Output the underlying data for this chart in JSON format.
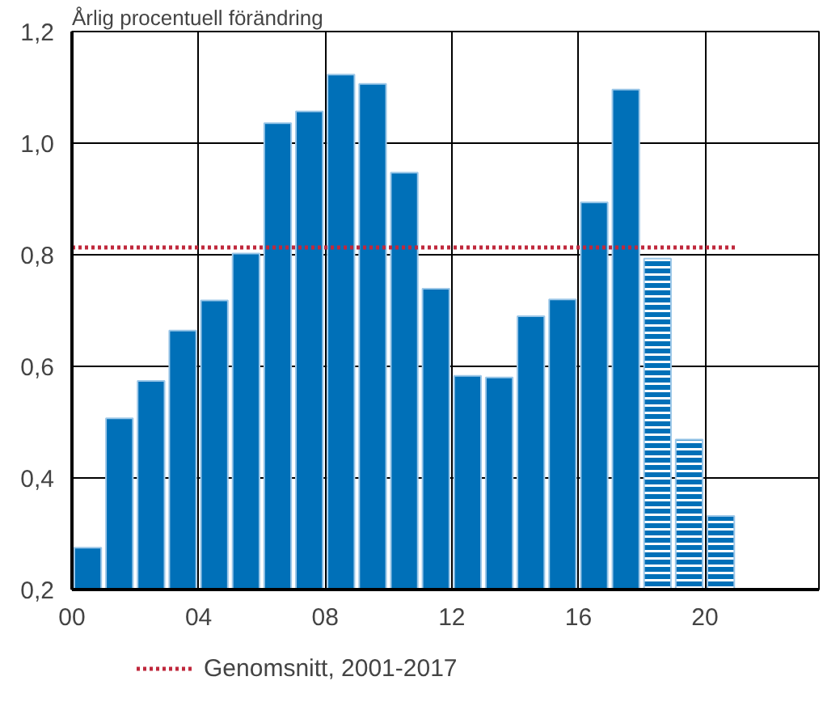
{
  "chart_data": {
    "type": "bar",
    "title": "Årlig procentuell förändring",
    "x": [
      0.5,
      1.5,
      2.5,
      3.5,
      4.5,
      5.5,
      6.5,
      7.5,
      8.5,
      9.5,
      10.5,
      11.5,
      12.5,
      13.5,
      14.5,
      15.5,
      16.5,
      17.5,
      18.5,
      19.5,
      20.5
    ],
    "series": [
      {
        "color": "#0070b8",
        "values": [
          0.275,
          0.507,
          0.574,
          0.664,
          0.718,
          0.802,
          1.036,
          1.057,
          1.123,
          1.106,
          0.947,
          0.739,
          0.583,
          0.58,
          0.69,
          0.72,
          0.894,
          1.096,
          null,
          null,
          null
        ]
      },
      {
        "color": "#0070b8",
        "values": [
          null,
          null,
          null,
          null,
          null,
          null,
          null,
          null,
          null,
          null,
          null,
          null,
          null,
          null,
          null,
          null,
          null,
          null,
          0.793,
          0.469,
          0.332
        ]
      }
    ],
    "xlim": [
      0,
      23.6
    ],
    "xticks": [
      {
        "value": 0,
        "label": "00"
      },
      {
        "value": 4,
        "label": "04"
      },
      {
        "value": 8,
        "label": "08"
      },
      {
        "value": 12,
        "label": "12"
      },
      {
        "value": 16,
        "label": "16"
      },
      {
        "value": 20,
        "label": "20"
      }
    ],
    "ylim": [
      0.2,
      1.2
    ],
    "yticks": [
      {
        "value": 0.2,
        "label": "0,2"
      },
      {
        "value": 0.4,
        "label": "0,4"
      },
      {
        "value": 0.6,
        "label": "0,6"
      },
      {
        "value": 0.8,
        "label": "0,8"
      },
      {
        "value": 1.0,
        "label": "1,0"
      },
      {
        "value": 1.2,
        "label": "1,2"
      }
    ],
    "ref_lines": [
      {
        "axis": "y",
        "value": 0.813,
        "label": "Genomsnitt, 2001-2017",
        "color": "#c0283c",
        "line_style": "dotted"
      }
    ],
    "grid": true,
    "legend": "bottom"
  }
}
